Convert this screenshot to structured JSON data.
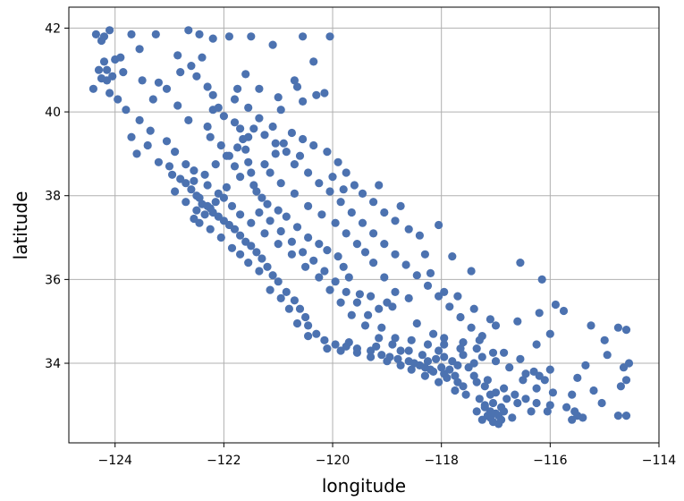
{
  "chart_data": {
    "type": "scatter",
    "title": "",
    "xlabel": "longitude",
    "ylabel": "latitude",
    "xlim": [
      -124.85,
      -114.0
    ],
    "ylim": [
      32.1,
      42.5
    ],
    "grid": true,
    "marker_color": "#4c72b0",
    "x_ticks": [
      -124,
      -122,
      -120,
      -118,
      -116,
      -114
    ],
    "y_ticks": [
      34,
      36,
      38,
      40,
      42
    ],
    "x_tick_labels": [
      "−124",
      "−122",
      "−120",
      "−118",
      "−116",
      "−114"
    ],
    "y_tick_labels": [
      "34",
      "36",
      "38",
      "40",
      "42"
    ],
    "points": [
      [
        -124.35,
        41.85
      ],
      [
        -124.2,
        41.8
      ],
      [
        -124.1,
        41.95
      ],
      [
        -124.25,
        41.7
      ],
      [
        -123.7,
        41.85
      ],
      [
        -123.25,
        41.85
      ],
      [
        -122.65,
        41.95
      ],
      [
        -122.45,
        41.85
      ],
      [
        -122.2,
        41.75
      ],
      [
        -121.9,
        41.8
      ],
      [
        -121.5,
        41.8
      ],
      [
        -121.1,
        41.6
      ],
      [
        -120.55,
        41.8
      ],
      [
        -120.05,
        41.8
      ],
      [
        -124.4,
        40.55
      ],
      [
        -124.25,
        40.8
      ],
      [
        -124.15,
        40.75
      ],
      [
        -124.05,
        40.85
      ],
      [
        -124.15,
        41.0
      ],
      [
        -124.0,
        41.25
      ],
      [
        -123.85,
        40.95
      ],
      [
        -123.5,
        40.75
      ],
      [
        -123.2,
        40.7
      ],
      [
        -122.8,
        40.95
      ],
      [
        -122.6,
        41.1
      ],
      [
        -122.4,
        41.3
      ],
      [
        -122.3,
        40.6
      ],
      [
        -122.2,
        40.4
      ],
      [
        -122.1,
        40.1
      ],
      [
        -121.8,
        40.3
      ],
      [
        -121.6,
        40.9
      ],
      [
        -121.35,
        40.55
      ],
      [
        -121.0,
        40.35
      ],
      [
        -120.7,
        40.75
      ],
      [
        -120.55,
        40.25
      ],
      [
        -120.3,
        40.4
      ],
      [
        -123.7,
        39.4
      ],
      [
        -123.6,
        39.0
      ],
      [
        -123.4,
        39.2
      ],
      [
        -123.2,
        38.8
      ],
      [
        -122.95,
        38.5
      ],
      [
        -122.8,
        38.4
      ],
      [
        -122.7,
        38.3
      ],
      [
        -122.6,
        38.15
      ],
      [
        -122.5,
        38.0
      ],
      [
        -122.45,
        37.95
      ],
      [
        -122.4,
        37.8
      ],
      [
        -122.3,
        37.75
      ],
      [
        -122.25,
        37.7
      ],
      [
        -122.2,
        37.6
      ],
      [
        -122.1,
        37.5
      ],
      [
        -122.0,
        37.4
      ],
      [
        -121.9,
        37.3
      ],
      [
        -121.8,
        37.2
      ],
      [
        -121.7,
        37.05
      ],
      [
        -121.6,
        36.9
      ],
      [
        -121.5,
        36.8
      ],
      [
        -121.4,
        36.65
      ],
      [
        -121.3,
        36.5
      ],
      [
        -121.2,
        36.3
      ],
      [
        -121.1,
        36.1
      ],
      [
        -121.0,
        35.95
      ],
      [
        -120.85,
        35.7
      ],
      [
        -120.7,
        35.5
      ],
      [
        -120.6,
        35.3
      ],
      [
        -120.5,
        35.1
      ],
      [
        -120.45,
        34.9
      ],
      [
        -120.3,
        34.7
      ],
      [
        -120.15,
        34.55
      ],
      [
        -119.95,
        34.45
      ],
      [
        -119.75,
        34.4
      ],
      [
        -119.55,
        34.35
      ],
      [
        -119.3,
        34.3
      ],
      [
        -119.1,
        34.2
      ],
      [
        -118.95,
        34.15
      ],
      [
        -118.8,
        34.1
      ],
      [
        -118.6,
        34.05
      ],
      [
        -118.5,
        34.0
      ],
      [
        -118.4,
        33.95
      ],
      [
        -118.3,
        33.9
      ],
      [
        -118.25,
        34.05
      ],
      [
        -118.2,
        33.85
      ],
      [
        -118.15,
        33.8
      ],
      [
        -118.1,
        34.1
      ],
      [
        -118.0,
        33.9
      ],
      [
        -117.95,
        33.75
      ],
      [
        -117.9,
        33.65
      ],
      [
        -117.85,
        33.85
      ],
      [
        -117.8,
        34.05
      ],
      [
        -117.75,
        33.7
      ],
      [
        -117.7,
        33.55
      ],
      [
        -117.6,
        33.45
      ],
      [
        -117.5,
        33.9
      ],
      [
        -117.4,
        34.0
      ],
      [
        -117.3,
        33.15
      ],
      [
        -117.2,
        32.95
      ],
      [
        -117.15,
        32.75
      ],
      [
        -117.1,
        32.7
      ],
      [
        -117.05,
        32.6
      ],
      [
        -117.0,
        32.8
      ],
      [
        -116.95,
        32.75
      ],
      [
        -116.9,
        32.95
      ],
      [
        -116.8,
        33.15
      ],
      [
        -116.6,
        33.05
      ],
      [
        -116.45,
        33.75
      ],
      [
        -116.3,
        33.8
      ],
      [
        -116.2,
        33.7
      ],
      [
        -116.1,
        33.6
      ],
      [
        -115.95,
        33.3
      ],
      [
        -115.7,
        32.95
      ],
      [
        -115.55,
        32.85
      ],
      [
        -115.5,
        32.75
      ],
      [
        -115.4,
        32.7
      ],
      [
        -115.6,
        32.65
      ],
      [
        -114.75,
        32.75
      ],
      [
        -114.6,
        32.75
      ],
      [
        -114.6,
        33.6
      ],
      [
        -114.55,
        34.0
      ],
      [
        -114.6,
        34.8
      ],
      [
        -114.75,
        34.85
      ],
      [
        -115.0,
        34.55
      ],
      [
        -116.0,
        34.7
      ],
      [
        -116.25,
        34.45
      ],
      [
        -116.85,
        34.25
      ],
      [
        -117.0,
        34.9
      ],
      [
        -117.3,
        34.55
      ],
      [
        -117.6,
        34.5
      ],
      [
        -117.95,
        34.6
      ],
      [
        -118.15,
        34.7
      ],
      [
        -118.45,
        34.95
      ],
      [
        -118.9,
        35.35
      ],
      [
        -119.0,
        35.45
      ],
      [
        -119.15,
        35.3
      ],
      [
        -119.3,
        35.6
      ],
      [
        -119.5,
        35.65
      ],
      [
        -119.7,
        36.05
      ],
      [
        -119.8,
        36.3
      ],
      [
        -119.9,
        36.55
      ],
      [
        -120.1,
        36.7
      ],
      [
        -120.25,
        36.85
      ],
      [
        -120.45,
        37.0
      ],
      [
        -120.65,
        37.25
      ],
      [
        -120.85,
        37.5
      ],
      [
        -121.0,
        37.65
      ],
      [
        -121.2,
        37.8
      ],
      [
        -121.3,
        37.95
      ],
      [
        -121.45,
        38.25
      ],
      [
        -121.5,
        38.55
      ],
      [
        -121.55,
        38.8
      ],
      [
        -121.6,
        39.1
      ],
      [
        -121.65,
        39.35
      ],
      [
        -121.7,
        39.6
      ],
      [
        -121.8,
        39.75
      ],
      [
        -122.0,
        39.9
      ],
      [
        -122.2,
        40.05
      ],
      [
        -122.3,
        39.65
      ],
      [
        -122.25,
        39.4
      ],
      [
        -122.05,
        39.2
      ],
      [
        -121.9,
        38.95
      ],
      [
        -121.8,
        38.7
      ],
      [
        -121.7,
        38.45
      ],
      [
        -121.25,
        38.75
      ],
      [
        -121.05,
        39.0
      ],
      [
        -120.9,
        39.25
      ],
      [
        -120.75,
        39.5
      ],
      [
        -120.55,
        39.35
      ],
      [
        -120.35,
        39.2
      ],
      [
        -120.1,
        39.05
      ],
      [
        -119.9,
        38.8
      ],
      [
        -119.75,
        38.55
      ],
      [
        -119.6,
        38.25
      ],
      [
        -119.45,
        38.05
      ],
      [
        -119.25,
        37.85
      ],
      [
        -119.05,
        37.6
      ],
      [
        -118.85,
        37.4
      ],
      [
        -118.6,
        37.2
      ],
      [
        -118.4,
        37.05
      ],
      [
        -118.3,
        36.6
      ],
      [
        -118.2,
        36.15
      ],
      [
        -117.95,
        35.7
      ],
      [
        -117.7,
        35.6
      ],
      [
        -117.4,
        35.3
      ],
      [
        -117.1,
        35.05
      ],
      [
        -116.6,
        35.0
      ],
      [
        -116.2,
        35.2
      ],
      [
        -115.9,
        35.4
      ],
      [
        -118.6,
        35.55
      ],
      [
        -118.85,
        35.7
      ],
      [
        -119.05,
        36.05
      ],
      [
        -119.25,
        36.4
      ],
      [
        -119.4,
        36.65
      ],
      [
        -119.55,
        36.85
      ],
      [
        -119.75,
        37.1
      ],
      [
        -119.95,
        37.35
      ],
      [
        -120.2,
        37.55
      ],
      [
        -120.45,
        37.75
      ],
      [
        -120.7,
        38.05
      ],
      [
        -120.95,
        38.3
      ],
      [
        -121.15,
        38.55
      ],
      [
        -121.4,
        38.1
      ],
      [
        -121.95,
        38.2
      ],
      [
        -122.1,
        38.05
      ],
      [
        -122.3,
        38.25
      ],
      [
        -122.55,
        38.6
      ],
      [
        -122.7,
        38.75
      ],
      [
        -122.9,
        39.05
      ],
      [
        -123.05,
        39.3
      ],
      [
        -123.35,
        39.55
      ],
      [
        -123.55,
        39.8
      ],
      [
        -123.8,
        40.05
      ],
      [
        -123.95,
        40.3
      ],
      [
        -124.1,
        40.45
      ],
      [
        -122.65,
        39.8
      ],
      [
        -122.85,
        40.15
      ],
      [
        -121.35,
        39.85
      ],
      [
        -121.1,
        39.65
      ],
      [
        -120.95,
        40.05
      ],
      [
        -120.65,
        40.6
      ],
      [
        -120.15,
        40.45
      ],
      [
        -120.35,
        41.2
      ],
      [
        -120.6,
        38.95
      ],
      [
        -120.0,
        38.45
      ],
      [
        -119.8,
        38.15
      ],
      [
        -119.15,
        38.25
      ],
      [
        -118.75,
        37.75
      ],
      [
        -118.05,
        37.3
      ],
      [
        -117.8,
        36.55
      ],
      [
        -117.45,
        36.2
      ],
      [
        -116.55,
        36.4
      ],
      [
        -116.15,
        36.0
      ],
      [
        -115.75,
        35.25
      ],
      [
        -115.25,
        34.9
      ],
      [
        -114.95,
        34.2
      ],
      [
        -115.35,
        33.95
      ],
      [
        -115.6,
        33.25
      ],
      [
        -116.0,
        33.0
      ],
      [
        -116.35,
        32.85
      ],
      [
        -116.7,
        32.7
      ],
      [
        -117.2,
        33.45
      ],
      [
        -117.4,
        33.7
      ],
      [
        -117.7,
        33.95
      ],
      [
        -117.95,
        34.15
      ],
      [
        -118.35,
        34.2
      ],
      [
        -118.6,
        34.3
      ],
      [
        -118.9,
        34.45
      ],
      [
        -119.15,
        34.6
      ],
      [
        -119.4,
        34.9
      ],
      [
        -119.65,
        35.15
      ],
      [
        -119.85,
        35.45
      ],
      [
        -120.05,
        35.75
      ],
      [
        -120.25,
        36.05
      ],
      [
        -120.5,
        36.3
      ],
      [
        -120.75,
        36.6
      ],
      [
        -121.0,
        36.85
      ],
      [
        -121.25,
        37.1
      ],
      [
        -121.5,
        37.35
      ],
      [
        -121.7,
        37.55
      ],
      [
        -121.85,
        37.75
      ],
      [
        -122.0,
        37.95
      ],
      [
        -122.15,
        37.85
      ],
      [
        -122.35,
        37.55
      ],
      [
        -122.45,
        37.35
      ],
      [
        -122.25,
        37.2
      ],
      [
        -122.05,
        37.0
      ],
      [
        -121.85,
        36.75
      ],
      [
        -121.7,
        36.6
      ],
      [
        -121.55,
        36.4
      ],
      [
        -121.35,
        36.2
      ],
      [
        -121.15,
        35.75
      ],
      [
        -120.95,
        35.55
      ],
      [
        -120.8,
        35.3
      ],
      [
        -120.65,
        34.95
      ],
      [
        -120.45,
        34.65
      ],
      [
        -119.7,
        34.5
      ],
      [
        -119.2,
        34.4
      ],
      [
        -118.75,
        34.3
      ],
      [
        -118.05,
        34.3
      ],
      [
        -117.6,
        34.2
      ],
      [
        -117.25,
        34.15
      ],
      [
        -117.0,
        34.05
      ],
      [
        -116.75,
        33.9
      ],
      [
        -116.5,
        33.6
      ],
      [
        -116.25,
        33.4
      ],
      [
        -117.35,
        32.85
      ],
      [
        -117.25,
        32.65
      ],
      [
        -116.95,
        32.55
      ],
      [
        -117.55,
        33.25
      ],
      [
        -117.75,
        33.35
      ],
      [
        -118.05,
        33.55
      ],
      [
        -118.3,
        33.7
      ],
      [
        -118.55,
        33.85
      ],
      [
        -118.75,
        33.95
      ],
      [
        -119.0,
        34.05
      ],
      [
        -119.3,
        34.15
      ],
      [
        -119.55,
        34.25
      ],
      [
        -119.85,
        34.3
      ],
      [
        -120.1,
        34.35
      ],
      [
        -123.0,
        38.7
      ],
      [
        -122.9,
        38.1
      ],
      [
        -122.55,
        38.35
      ],
      [
        -122.35,
        38.5
      ],
      [
        -122.15,
        38.75
      ],
      [
        -121.95,
        38.95
      ],
      [
        -121.75,
        39.15
      ],
      [
        -121.55,
        39.4
      ],
      [
        -121.45,
        39.6
      ],
      [
        -121.25,
        39.45
      ],
      [
        -121.05,
        39.25
      ],
      [
        -120.85,
        39.05
      ],
      [
        -120.7,
        38.75
      ],
      [
        -120.45,
        38.55
      ],
      [
        -120.25,
        38.3
      ],
      [
        -120.05,
        38.1
      ],
      [
        -119.85,
        37.85
      ],
      [
        -119.65,
        37.6
      ],
      [
        -119.45,
        37.35
      ],
      [
        -119.25,
        37.1
      ],
      [
        -119.05,
        36.85
      ],
      [
        -118.85,
        36.6
      ],
      [
        -118.65,
        36.35
      ],
      [
        -118.45,
        36.1
      ],
      [
        -118.25,
        35.85
      ],
      [
        -118.05,
        35.6
      ],
      [
        -117.85,
        35.35
      ],
      [
        -117.65,
        35.1
      ],
      [
        -117.45,
        34.85
      ],
      [
        -117.25,
        34.65
      ],
      [
        -123.3,
        40.3
      ],
      [
        -123.05,
        40.55
      ],
      [
        -122.5,
        40.85
      ],
      [
        -121.75,
        40.55
      ],
      [
        -121.55,
        40.1
      ],
      [
        -122.85,
        41.35
      ],
      [
        -123.55,
        41.5
      ],
      [
        -123.9,
        41.3
      ],
      [
        -124.2,
        41.2
      ],
      [
        -124.3,
        41.0
      ],
      [
        -122.7,
        37.85
      ],
      [
        -122.5,
        37.65
      ],
      [
        -122.55,
        37.45
      ],
      [
        -121.35,
        37.6
      ],
      [
        -121.15,
        37.4
      ],
      [
        -120.95,
        37.15
      ],
      [
        -120.75,
        36.9
      ],
      [
        -120.55,
        36.65
      ],
      [
        -120.35,
        36.45
      ],
      [
        -120.15,
        36.2
      ],
      [
        -119.95,
        35.95
      ],
      [
        -119.75,
        35.7
      ],
      [
        -119.55,
        35.45
      ],
      [
        -119.35,
        35.15
      ],
      [
        -119.1,
        34.85
      ],
      [
        -118.85,
        34.6
      ],
      [
        -118.55,
        34.55
      ],
      [
        -118.25,
        34.45
      ],
      [
        -117.95,
        34.45
      ],
      [
        -117.65,
        34.35
      ],
      [
        -117.35,
        34.35
      ],
      [
        -117.05,
        34.25
      ],
      [
        -116.55,
        34.1
      ],
      [
        -116.0,
        33.85
      ],
      [
        -115.5,
        33.65
      ],
      [
        -115.2,
        33.35
      ],
      [
        -115.05,
        33.05
      ],
      [
        -114.7,
        33.45
      ],
      [
        -114.65,
        33.9
      ],
      [
        -116.85,
        33.4
      ],
      [
        -116.65,
        33.25
      ],
      [
        -116.45,
        33.15
      ],
      [
        -116.25,
        33.05
      ],
      [
        -116.05,
        32.85
      ],
      [
        -117.1,
        33.25
      ],
      [
        -117.2,
        33.0
      ],
      [
        -117.05,
        33.05
      ],
      [
        -116.9,
        32.65
      ],
      [
        -117.1,
        32.85
      ],
      [
        -116.85,
        32.85
      ],
      [
        -117.0,
        33.3
      ],
      [
        -117.15,
        33.6
      ],
      [
        -117.35,
        33.55
      ]
    ]
  }
}
